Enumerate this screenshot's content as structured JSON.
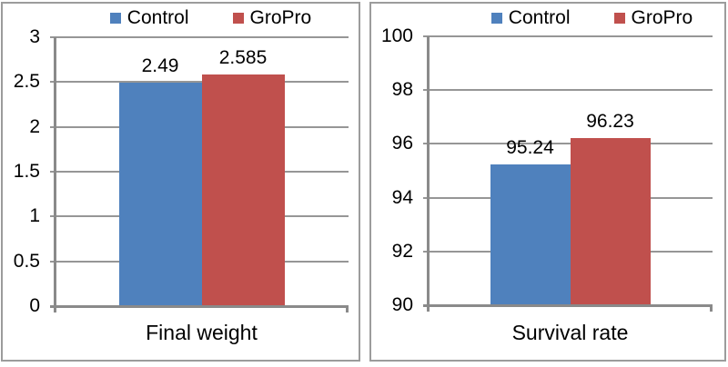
{
  "colors": {
    "control": "#4f81bd",
    "gropro": "#c0504d",
    "gridline": "#969696",
    "axis": "#8a8a8a",
    "panel_border": "#9c9c9c",
    "text": "#000000",
    "background": "#ffffff"
  },
  "legend": {
    "items": [
      {
        "label": "Control",
        "color": "#4f81bd"
      },
      {
        "label": "GroPro",
        "color": "#c0504d"
      }
    ]
  },
  "chart_data": [
    {
      "type": "bar",
      "categories": [
        "Final weight"
      ],
      "xlabel": "Final weight",
      "series": [
        {
          "name": "Control",
          "values": [
            2.49
          ],
          "labels": [
            "2.49"
          ],
          "color": "#4f81bd"
        },
        {
          "name": "GroPro",
          "values": [
            2.585
          ],
          "labels": [
            "2.585"
          ],
          "color": "#c0504d"
        }
      ],
      "ylim": [
        0,
        3
      ],
      "yticks": [
        0,
        0.5,
        1,
        1.5,
        2,
        2.5,
        3
      ],
      "ytick_labels": [
        "0",
        "0.5",
        "1",
        "1.5",
        "2",
        "2.5",
        "3"
      ],
      "grid": true,
      "legend_position": "top",
      "data_labels": true
    },
    {
      "type": "bar",
      "categories": [
        "Survival rate"
      ],
      "xlabel": "Survival rate",
      "series": [
        {
          "name": "Control",
          "values": [
            95.24
          ],
          "labels": [
            "95.24"
          ],
          "color": "#4f81bd"
        },
        {
          "name": "GroPro",
          "values": [
            96.23
          ],
          "labels": [
            "96.23"
          ],
          "color": "#c0504d"
        }
      ],
      "ylim": [
        90,
        100
      ],
      "yticks": [
        90,
        92,
        94,
        96,
        98,
        100
      ],
      "ytick_labels": [
        "90",
        "92",
        "94",
        "96",
        "98",
        "100"
      ],
      "grid": true,
      "legend_position": "top",
      "data_labels": true
    }
  ]
}
